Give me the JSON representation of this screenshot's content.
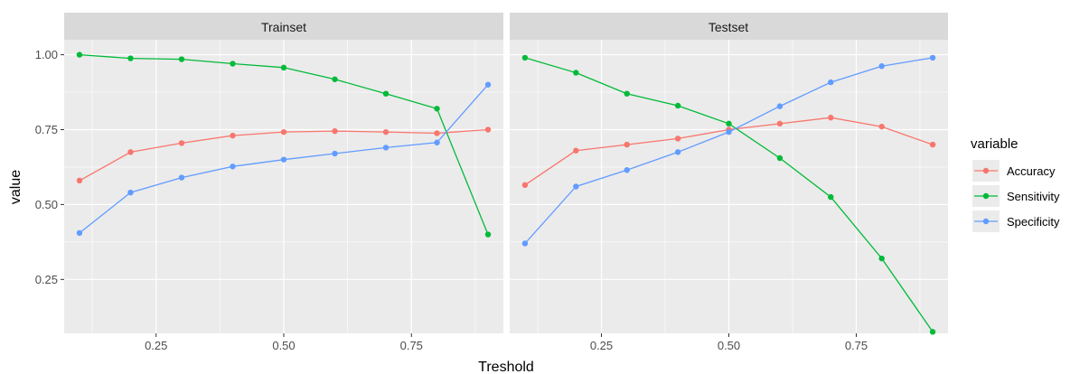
{
  "chart_data": {
    "type": "line",
    "xlabel": "Treshold",
    "ylabel": "value",
    "legend_title": "variable",
    "legend_placement": "right",
    "grid": true,
    "colors": {
      "Accuracy": "#F8766D",
      "Sensitivity": "#00BA38",
      "Specificity": "#619CFF"
    },
    "x_ticks": [
      "0.25",
      "0.50",
      "0.75"
    ],
    "y_ticks": [
      "0.25",
      "0.50",
      "0.75",
      "1.00"
    ],
    "panels": [
      {
        "title": "Trainset",
        "xlim": [
          0.07,
          0.93
        ],
        "ylim": [
          0.07,
          1.05
        ],
        "series": [
          {
            "name": "Accuracy",
            "x": [
              0.1,
              0.2,
              0.3,
              0.4,
              0.5,
              0.6,
              0.7,
              0.8,
              0.9
            ],
            "y": [
              0.58,
              0.675,
              0.705,
              0.73,
              0.742,
              0.745,
              0.742,
              0.738,
              0.75
            ]
          },
          {
            "name": "Sensitivity",
            "x": [
              0.1,
              0.2,
              0.3,
              0.4,
              0.5,
              0.6,
              0.7,
              0.8,
              0.9
            ],
            "y": [
              1.0,
              0.988,
              0.985,
              0.97,
              0.957,
              0.918,
              0.87,
              0.82,
              0.4
            ]
          },
          {
            "name": "Specificity",
            "x": [
              0.1,
              0.2,
              0.3,
              0.4,
              0.5,
              0.6,
              0.7,
              0.8,
              0.9
            ],
            "y": [
              0.405,
              0.54,
              0.59,
              0.627,
              0.65,
              0.67,
              0.69,
              0.707,
              0.9
            ]
          }
        ]
      },
      {
        "title": "Testset",
        "xlim": [
          0.07,
          0.93
        ],
        "ylim": [
          0.07,
          1.05
        ],
        "series": [
          {
            "name": "Accuracy",
            "x": [
              0.1,
              0.2,
              0.3,
              0.4,
              0.5,
              0.6,
              0.7,
              0.8,
              0.9
            ],
            "y": [
              0.565,
              0.68,
              0.7,
              0.72,
              0.75,
              0.77,
              0.79,
              0.76,
              0.7
            ]
          },
          {
            "name": "Sensitivity",
            "x": [
              0.1,
              0.2,
              0.3,
              0.4,
              0.5,
              0.6,
              0.7,
              0.8,
              0.9
            ],
            "y": [
              0.99,
              0.94,
              0.87,
              0.83,
              0.77,
              0.655,
              0.525,
              0.32,
              0.075
            ]
          },
          {
            "name": "Specificity",
            "x": [
              0.1,
              0.2,
              0.3,
              0.4,
              0.5,
              0.6,
              0.7,
              0.8,
              0.9
            ],
            "y": [
              0.37,
              0.56,
              0.615,
              0.675,
              0.742,
              0.828,
              0.908,
              0.962,
              0.99
            ]
          }
        ]
      }
    ]
  }
}
